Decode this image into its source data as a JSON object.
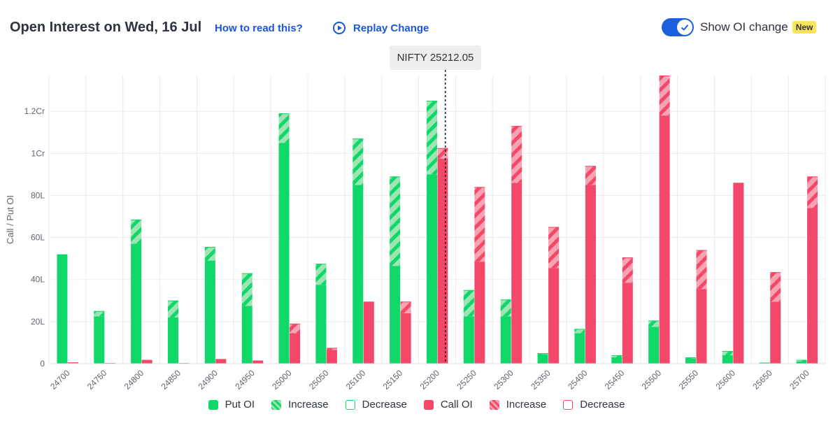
{
  "header": {
    "title": "Open Interest on Wed, 16 Jul",
    "how_to_read": "How to read this?",
    "replay": "Replay Change",
    "toggle_label": "Show OI change",
    "new_badge": "New"
  },
  "spot": {
    "label": "NIFTY 25212.05",
    "value": 25212.05
  },
  "colors": {
    "put": "#0fd869",
    "put_increase": "#9de6b4",
    "call": "#f4486a",
    "call_increase": "#f7a3b2",
    "grid": "#ebebeb",
    "accent": "#1b5fdf"
  },
  "legend": [
    {
      "label": "Put OI",
      "kind": "put"
    },
    {
      "label": "Increase",
      "kind": "put_increase"
    },
    {
      "label": "Decrease",
      "kind": "put_decrease"
    },
    {
      "label": "Call OI",
      "kind": "call"
    },
    {
      "label": "Increase",
      "kind": "call_increase"
    },
    {
      "label": "Decrease",
      "kind": "call_decrease"
    }
  ],
  "chart_data": {
    "type": "bar",
    "ylabel": "Call / Put OI",
    "ylim": [
      0,
      137
    ],
    "yticks": [
      {
        "value": 0,
        "label": "0"
      },
      {
        "value": 20,
        "label": "20L"
      },
      {
        "value": 40,
        "label": "40L"
      },
      {
        "value": 60,
        "label": "60L"
      },
      {
        "value": 80,
        "label": "80L"
      },
      {
        "value": 100,
        "label": "1Cr"
      },
      {
        "value": 120,
        "label": "1.2Cr"
      }
    ],
    "categories": [
      "24700",
      "24750",
      "24800",
      "24850",
      "24900",
      "24950",
      "25000",
      "25050",
      "25100",
      "25150",
      "25200",
      "25250",
      "25300",
      "25350",
      "25400",
      "25450",
      "25500",
      "25550",
      "25600",
      "25650",
      "25700"
    ],
    "series": [
      {
        "name": "Put OI",
        "base": [
          52,
          22.5,
          57,
          22,
          49,
          27.5,
          105,
          37.5,
          85,
          46.5,
          90,
          22.5,
          22.5,
          4.5,
          14.5,
          3,
          17.5,
          2.5,
          4,
          0.5,
          1
        ],
        "change": [
          0,
          2.5,
          11.5,
          8,
          6.5,
          15.5,
          14,
          10,
          22,
          42.5,
          35,
          12.5,
          8,
          0.5,
          2,
          1,
          3,
          0.5,
          2,
          0,
          0.8
        ]
      },
      {
        "name": "Call OI",
        "base": [
          0.3,
          0.2,
          1.8,
          0.3,
          2,
          1.5,
          14.5,
          6.5,
          29,
          24,
          97.5,
          48.5,
          86,
          45.5,
          85,
          38.5,
          118,
          35.5,
          86,
          29.5,
          74
        ],
        "change": [
          0.3,
          0.1,
          0,
          0,
          0.2,
          0,
          4.5,
          1,
          -0.5,
          5.5,
          5,
          35.5,
          27,
          19.5,
          9,
          12,
          19,
          18.5,
          0,
          14,
          15
        ]
      }
    ]
  }
}
